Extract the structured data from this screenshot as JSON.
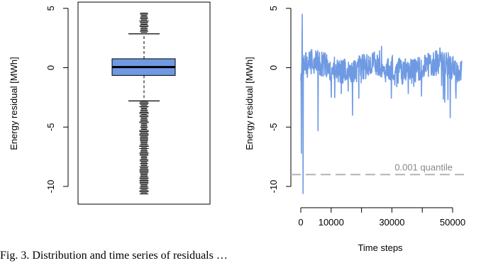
{
  "caption": "Fig. 3. Distribution and time series of residuals …",
  "chart_data": [
    {
      "type": "box",
      "title": "",
      "xlabel": "",
      "ylabel": "Energy residual [MWh]",
      "ylim": [
        -11,
        5.5
      ],
      "yticks": [
        5,
        0,
        -5,
        -10
      ],
      "ytick_labels": [
        "5",
        "0",
        "-5",
        "-10"
      ],
      "box": {
        "min": -10.7,
        "lower_whisker": -2.8,
        "q1": -0.65,
        "median": 0.05,
        "q3": 0.75,
        "upper_whisker": 2.85,
        "max": 4.6
      },
      "outliers_high_range": [
        2.9,
        4.6
      ],
      "outliers_low_range": [
        -10.7,
        -2.8
      ],
      "colors": {
        "box_fill": "#6f9ae3",
        "outline": "#000000"
      }
    },
    {
      "type": "line",
      "title": "",
      "xlabel": "Time steps",
      "ylabel": "Energy residual [MWh]",
      "xlim": [
        -1000,
        54500
      ],
      "ylim": [
        -11,
        5.5
      ],
      "xticks": [
        0,
        10000,
        20000,
        30000,
        40000,
        50000
      ],
      "xtick_labels": [
        "0",
        "10000",
        "",
        "30000",
        "",
        "50000"
      ],
      "yticks": [
        5,
        0,
        -5,
        -10
      ],
      "ytick_labels": [
        "5",
        "0",
        "-5",
        "-10"
      ],
      "series_summary": {
        "x_range": [
          0,
          53000
        ],
        "typical_range": [
          -2,
          2
        ],
        "min": -10.7,
        "max": 4.6
      },
      "reference_line": {
        "y": -9,
        "label": "0.001 quantile",
        "style": "dashed",
        "color": "#b3b3b3"
      },
      "colors": {
        "line": "#6f9ae3"
      }
    }
  ]
}
